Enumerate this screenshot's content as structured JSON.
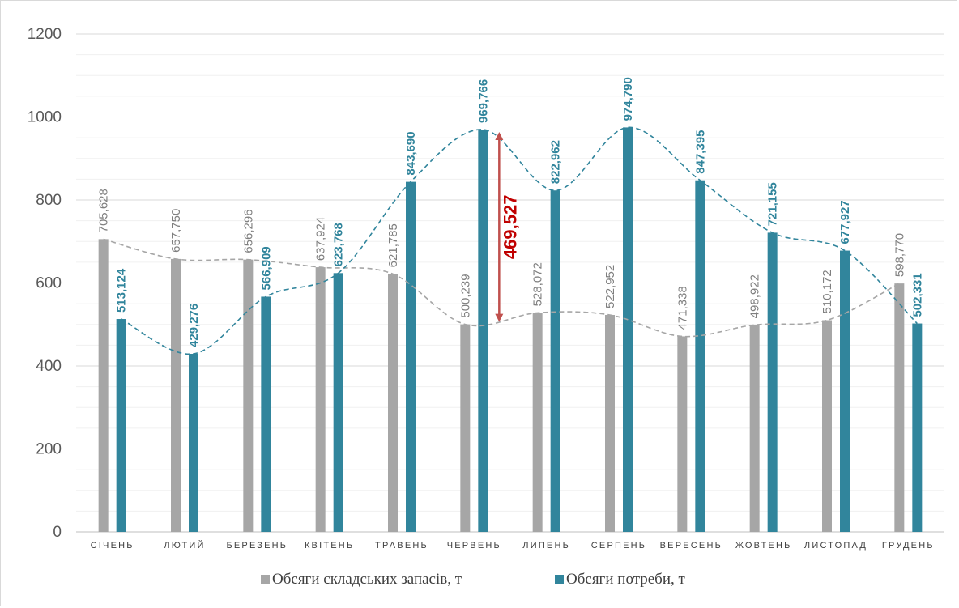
{
  "chart_data": {
    "type": "bar",
    "title": "",
    "xlabel": "",
    "ylabel": "",
    "ylim": [
      0,
      1200
    ],
    "y_ticks": [
      "0",
      "200",
      "400",
      "600",
      "800",
      "1000",
      "1200"
    ],
    "grid": true,
    "legend_position": "bottom",
    "categories": [
      "СІЧЕНЬ",
      "ЛЮТИЙ",
      "БЕРЕЗЕНЬ",
      "КВІТЕНЬ",
      "ТРАВЕНЬ",
      "ЧЕРВЕНЬ",
      "ЛИПЕНЬ",
      "СЕРПЕНЬ",
      "ВЕРЕСЕНЬ",
      "ЖОВТЕНЬ",
      "ЛИСТОПАД",
      "ГРУДЕНЬ"
    ],
    "series": [
      {
        "name": "Обсяги складських запасів, т",
        "color": "#a6a6a6",
        "label_color": "#7f7f7f",
        "values": [
          705.628,
          657.75,
          656.296,
          637.924,
          621.785,
          500.239,
          528.072,
          522.952,
          471.338,
          498.922,
          510.172,
          598.77
        ],
        "labels": [
          "705,628",
          "657,750",
          "656,296",
          "637,924",
          "621,785",
          "500,239",
          "528,072",
          "522,952",
          "471,338",
          "498,922",
          "510,172",
          "598,770"
        ]
      },
      {
        "name": "Обсяги потреби, т",
        "color": "#31859c",
        "label_color": "#31859c",
        "values": [
          513.124,
          429.276,
          566.909,
          623.768,
          843.69,
          969.766,
          822.962,
          974.79,
          847.395,
          721.155,
          677.927,
          502.331
        ],
        "labels": [
          "513,124",
          "429,276",
          "566,909",
          "623,768",
          "843,690",
          "969,766",
          "822,962",
          "974,790",
          "847,395",
          "721,155",
          "677,927",
          "502,331"
        ]
      }
    ],
    "trendlines": [
      {
        "series": 0,
        "style": "dashed",
        "color": "#a6a6a6"
      },
      {
        "series": 1,
        "style": "dashed",
        "color": "#31859c"
      }
    ],
    "annotation": {
      "text": "469,527",
      "category": "ЧЕРВЕНЬ",
      "from": 500.239,
      "to": 969.766,
      "color": "#c00000"
    }
  }
}
